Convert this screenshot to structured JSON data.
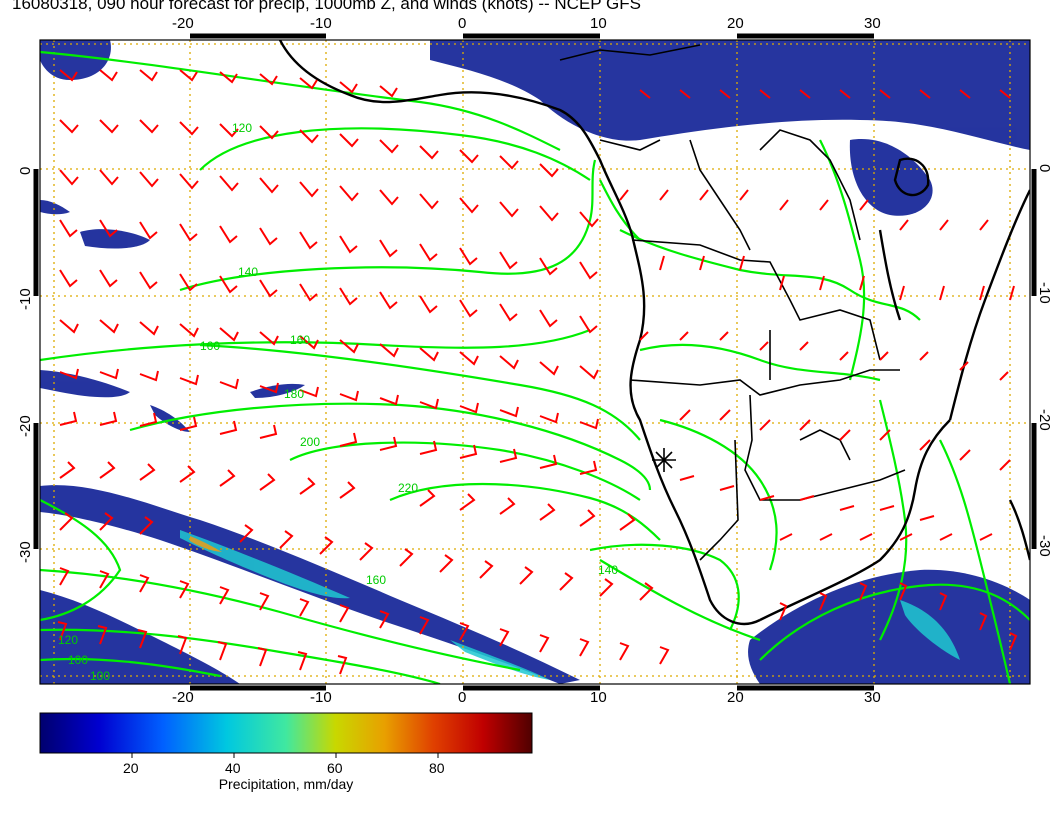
{
  "title": "16080318, 090 hour forecast for precip, 1000mb Z, and winds (knots) -- NCEP GFS",
  "map": {
    "lon_range": [
      -30,
      40
    ],
    "lat_range": [
      -40,
      10
    ],
    "x_ticks": [
      "-20",
      "-10",
      "0",
      "10",
      "20",
      "30"
    ],
    "y_ticks": [
      "0",
      "-10",
      "-20",
      "-30"
    ],
    "grid": "dotted-orange",
    "colors": {
      "coast": "#000000",
      "contour": "#00ee00",
      "contour_label": "#00cc00",
      "wind_barb": "#ff0000",
      "grid": "#ddaa00"
    },
    "contour_labels": [
      "120",
      "140",
      "160",
      "160",
      "180",
      "200",
      "220",
      "140",
      "120",
      "100",
      "100",
      "160"
    ]
  },
  "colorbar": {
    "ticks": [
      "20",
      "40",
      "60",
      "80"
    ],
    "label": "Precipitation, mm/day",
    "colors": [
      "#00008b",
      "#0000ff",
      "#0080ff",
      "#00d0d0",
      "#00ffa0",
      "#c0e000",
      "#e0a000",
      "#e04000",
      "#c00000",
      "#600000"
    ]
  }
}
